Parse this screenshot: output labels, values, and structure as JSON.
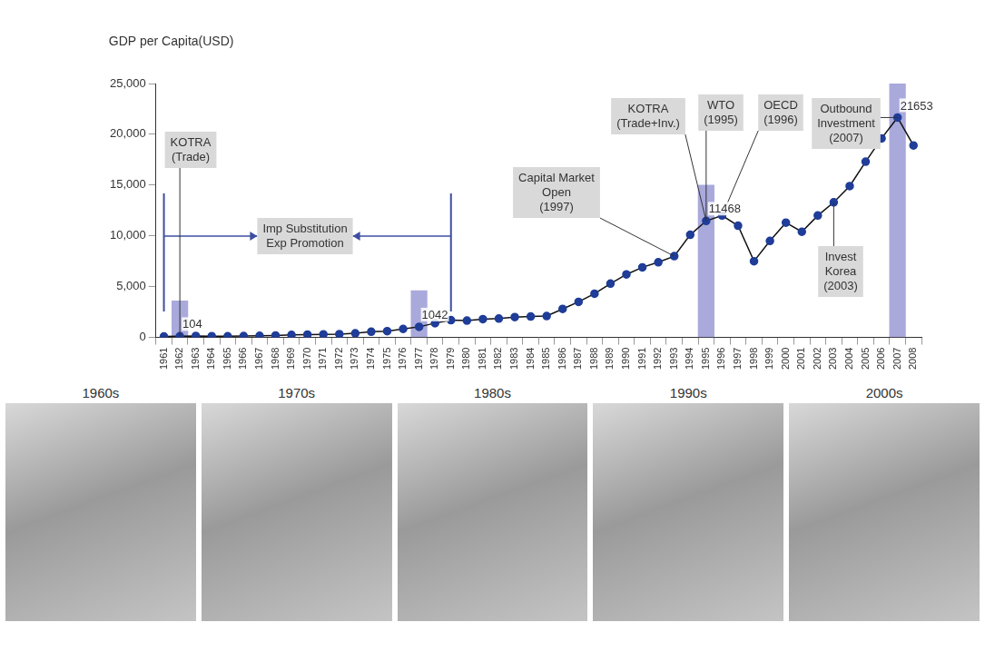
{
  "chart_data": {
    "type": "line",
    "y_label": "GDP per Capita(USD)",
    "categories": [
      "1961",
      "1962",
      "1963",
      "1964",
      "1965",
      "1966",
      "1967",
      "1968",
      "1969",
      "1970",
      "1971",
      "1972",
      "1973",
      "1974",
      "1975",
      "1976",
      "1977",
      "1978",
      "1979",
      "1980",
      "1981",
      "1982",
      "1983",
      "1984",
      "1985",
      "1986",
      "1987",
      "1988",
      "1989",
      "1990",
      "1991",
      "1992",
      "1993",
      "1994",
      "1995",
      "1996",
      "1997",
      "1998",
      "1999",
      "2000",
      "2001",
      "2002",
      "2003",
      "2004",
      "2005",
      "2006",
      "2007",
      "2008"
    ],
    "series": [
      {
        "type": "line",
        "color": "#1f3d99",
        "marker": "circle",
        "data_labels": true,
        "values": [
          90,
          104,
          140,
          120,
          110,
          130,
          160,
          190,
          240,
          280,
          300,
          320,
          400,
          560,
          610,
          830,
          1042,
          1400,
          1700,
          1650,
          1800,
          1850,
          2000,
          2050,
          2100,
          2800,
          3500,
          4300,
          5300,
          6200,
          6900,
          7400,
          8000,
          10100,
          11468,
          12000,
          11000,
          7500,
          9500,
          11300,
          10400,
          12000,
          13300,
          14900,
          17300,
          19600,
          21653,
          18900
        ],
        "value_labels": [
          null,
          "104",
          null,
          null,
          null,
          null,
          null,
          null,
          null,
          null,
          null,
          null,
          null,
          null,
          null,
          null,
          "1042",
          null,
          null,
          null,
          null,
          null,
          null,
          null,
          null,
          null,
          null,
          null,
          null,
          null,
          null,
          null,
          null,
          null,
          "11468",
          null,
          null,
          null,
          null,
          null,
          null,
          null,
          null,
          null,
          null,
          null,
          "21653",
          null
        ]
      },
      {
        "type": "bar",
        "color": "#a9a9dc",
        "values": [
          null,
          3600,
          null,
          null,
          null,
          null,
          null,
          null,
          null,
          null,
          null,
          null,
          null,
          null,
          null,
          null,
          4600,
          null,
          null,
          null,
          null,
          null,
          null,
          null,
          null,
          null,
          null,
          null,
          null,
          null,
          null,
          null,
          null,
          null,
          15000,
          null,
          null,
          null,
          null,
          null,
          null,
          null,
          null,
          null,
          null,
          null,
          25000,
          null
        ]
      }
    ],
    "ylim": [
      0,
      25000
    ],
    "yticks": [
      0,
      {
        "value": 5000,
        "label": "5,000"
      },
      {
        "value": 10000,
        "label": "10,000"
      },
      {
        "value": 15000,
        "label": "15,000"
      },
      {
        "value": 20000,
        "label": "20,000"
      },
      {
        "value": 25000,
        "label": "25,000"
      }
    ],
    "grid": false,
    "annotations": [
      {
        "lines": [
          "KOTRA",
          "(Trade)"
        ],
        "x": "1962"
      },
      {
        "lines": [
          "KOTRA",
          "(Trade+Inv.)"
        ],
        "x": "1995"
      },
      {
        "lines": [
          "WTO",
          "(1995)"
        ],
        "x": "1995"
      },
      {
        "lines": [
          "OECD",
          "(1996)"
        ],
        "x": "1996"
      },
      {
        "lines": [
          "Capital Market",
          "Open",
          "(1997)"
        ],
        "x": "1993"
      },
      {
        "lines": [
          "Outbound",
          "Investment",
          "(2007)"
        ],
        "x": "2007"
      },
      {
        "lines": [
          "Invest",
          "Korea",
          "(2003)"
        ],
        "x": "2003"
      }
    ],
    "period": {
      "lines": [
        "Imp Substitution",
        "Exp Promotion"
      ],
      "from": "1961",
      "to": "1979"
    }
  },
  "panels": [
    "1960s",
    "1970s",
    "1980s",
    "1990s",
    "2000s"
  ]
}
